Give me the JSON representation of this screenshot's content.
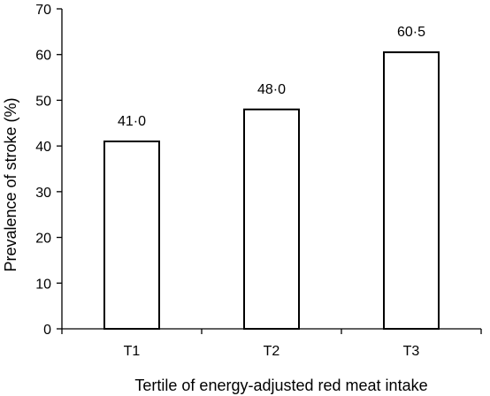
{
  "chart_data": {
    "type": "bar",
    "categories": [
      "T1",
      "T2",
      "T3"
    ],
    "values": [
      41.0,
      48.0,
      60.5
    ],
    "data_labels": [
      "41·0",
      "48·0",
      "60·5"
    ],
    "title": "",
    "xlabel": "Tertile of energy-adjusted red meat intake",
    "ylabel": "Prevalence of stroke (%)",
    "ylim": [
      0,
      70
    ],
    "yticks": [
      0,
      10,
      20,
      30,
      40,
      50,
      60,
      70
    ],
    "ytick_labels": [
      "0",
      "10",
      "20",
      "30",
      "40",
      "50",
      "60",
      "70"
    ],
    "grid": false,
    "legend": "none",
    "bar_fill": "#ffffff",
    "bar_stroke": "#000000"
  }
}
